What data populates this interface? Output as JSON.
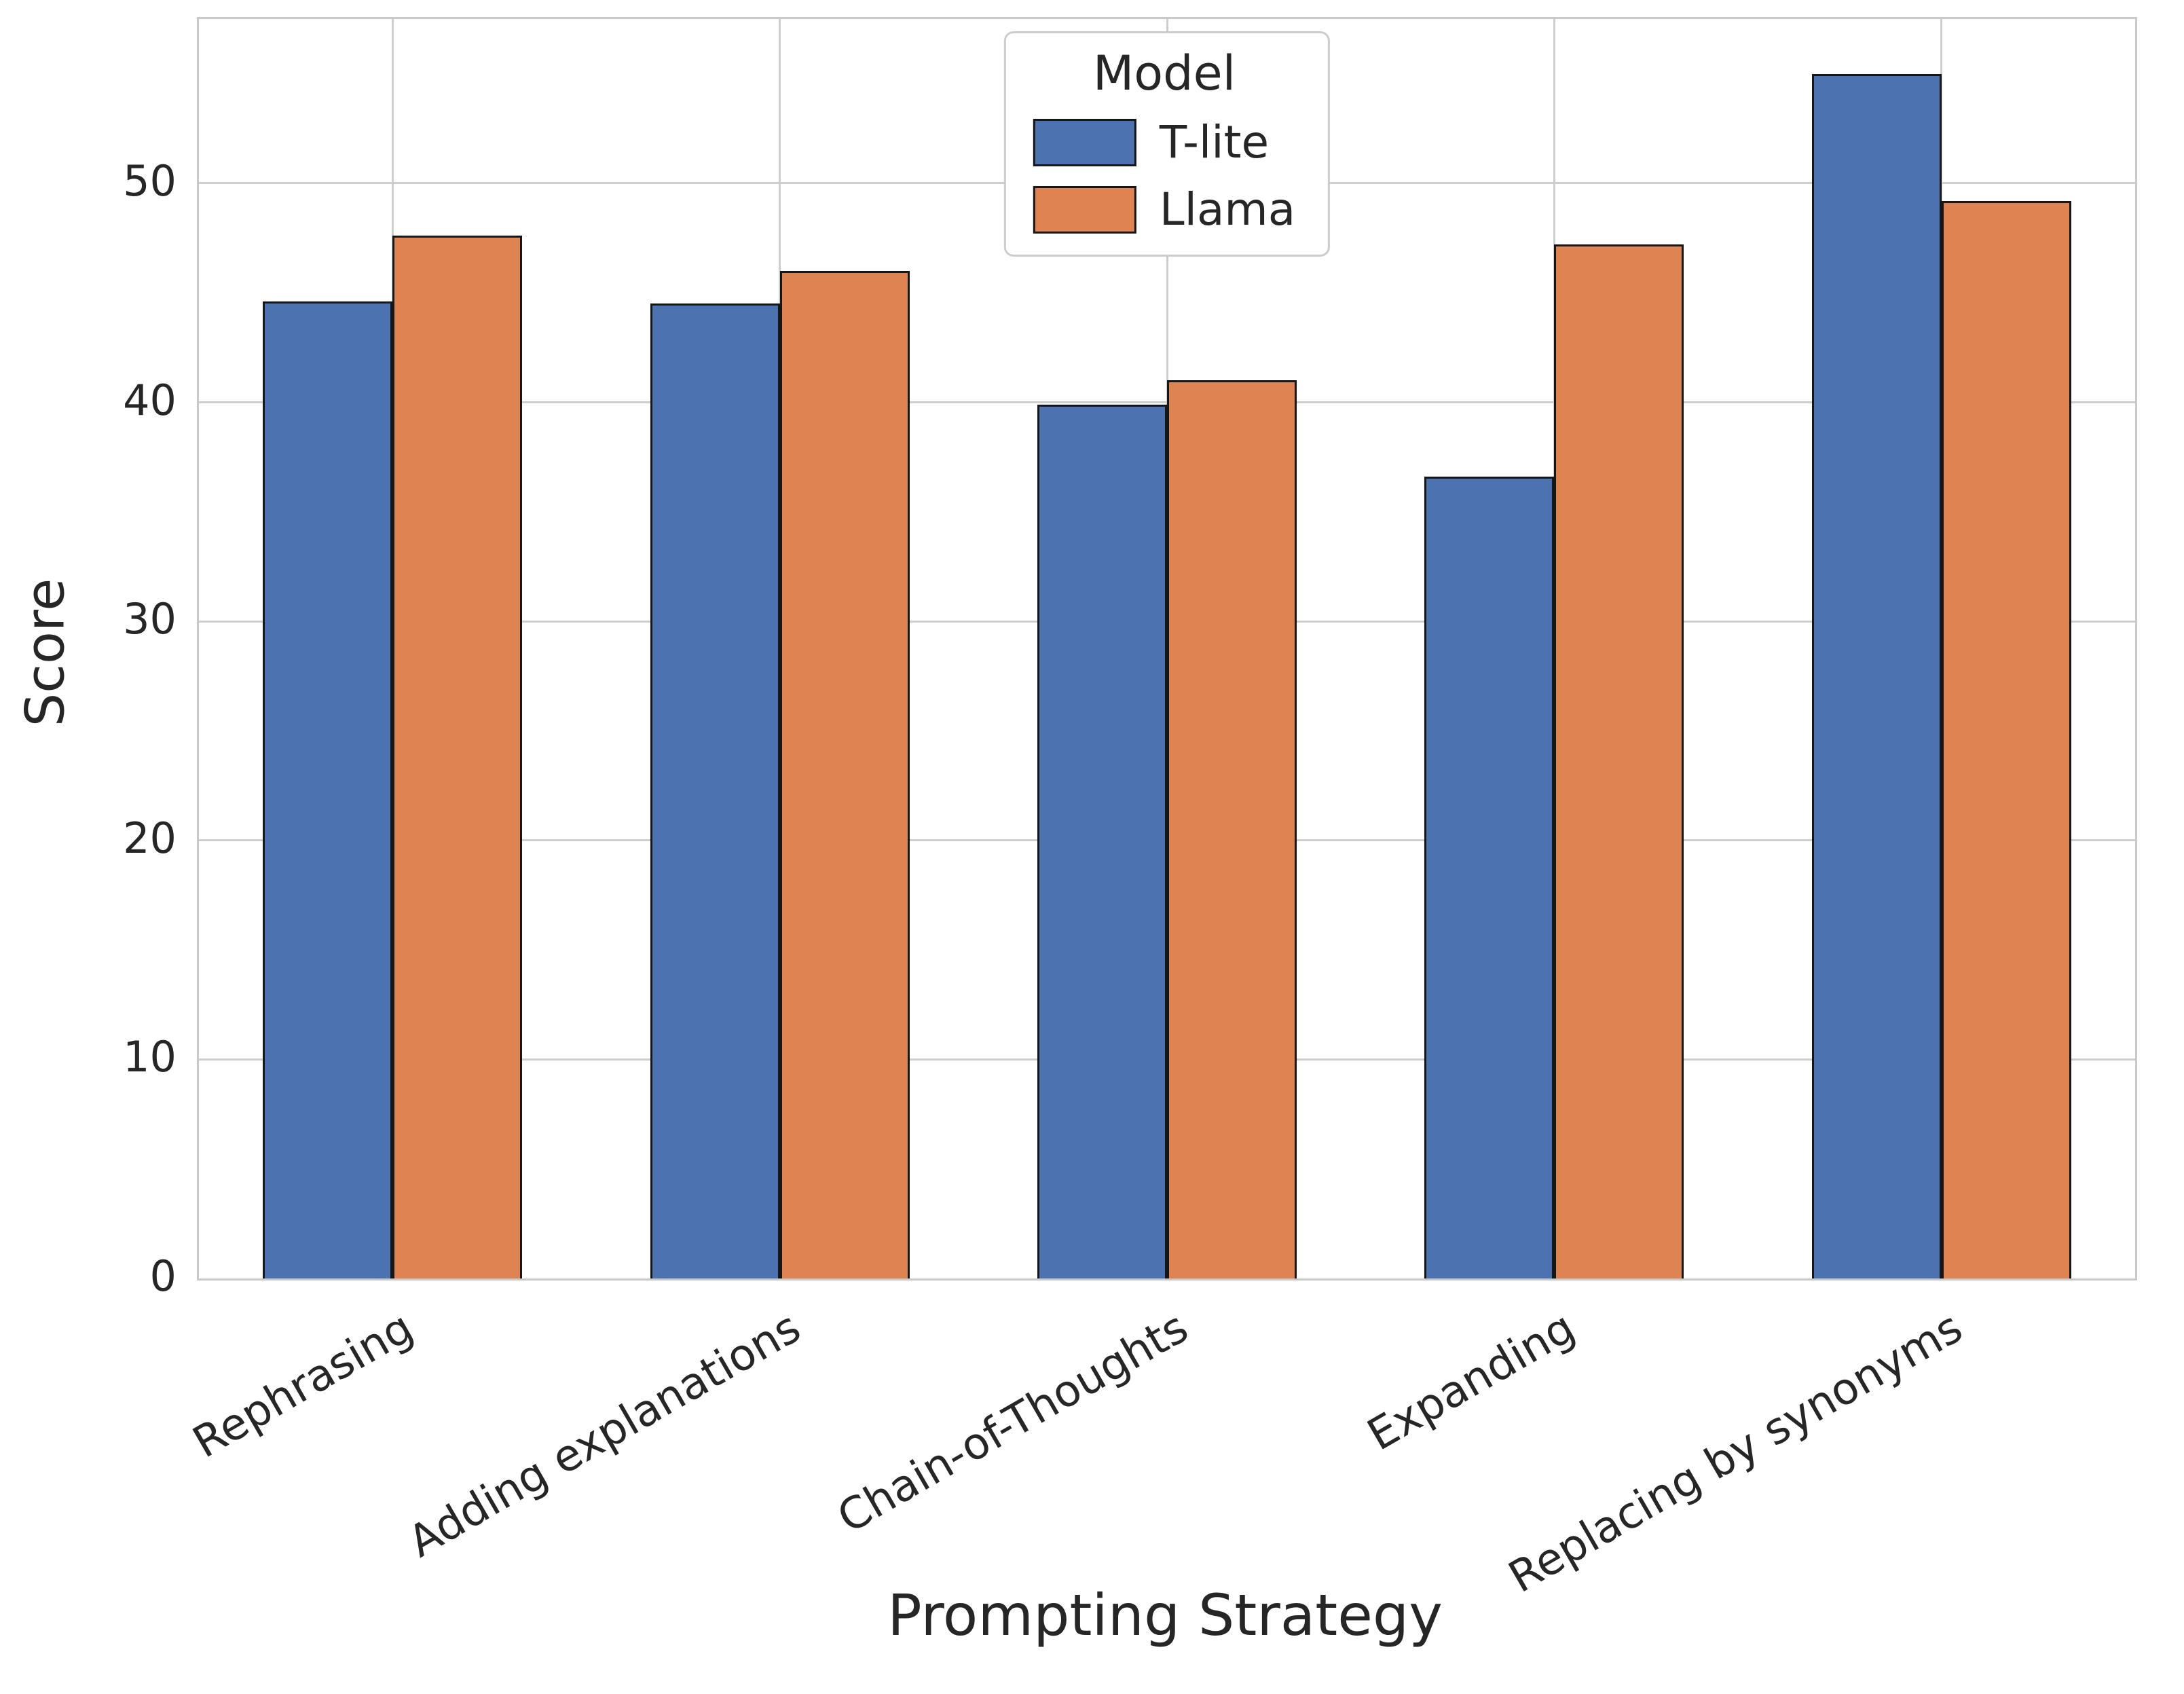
{
  "chart_data": {
    "type": "bar",
    "title": "",
    "xlabel": "Prompting Strategy",
    "ylabel": "Score",
    "categories": [
      "Rephrasing",
      "Adding explanations",
      "Chain-of-Thoughts",
      "Expanding",
      "Replacing by synonyms"
    ],
    "series": [
      {
        "name": "T-lite",
        "color": "#4C72B0",
        "values": [
          44.6,
          44.5,
          39.9,
          36.6,
          55.0
        ]
      },
      {
        "name": "Llama",
        "color": "#DD8452",
        "values": [
          47.6,
          46.0,
          41.0,
          47.2,
          49.2
        ]
      }
    ],
    "ylim": [
      0,
      57.5
    ],
    "yticks": [
      0,
      10,
      20,
      30,
      40,
      50
    ],
    "grid": true,
    "bar_edge_color": "#161616",
    "grid_color": "#cecece",
    "legend": {
      "title": "Model",
      "position": "upper center"
    }
  }
}
